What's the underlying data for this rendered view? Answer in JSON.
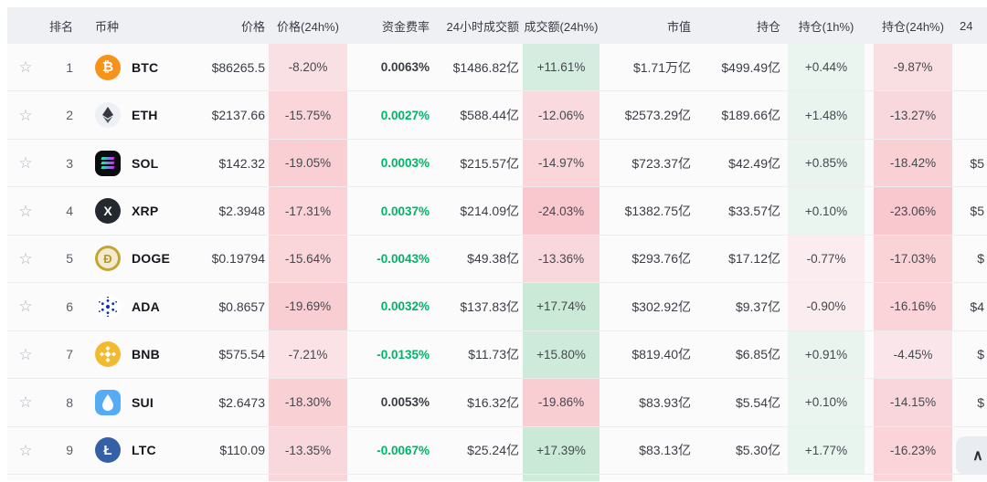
{
  "columns": [
    "排名",
    "币种",
    "价格",
    "价格(24h%)",
    "资金费率",
    "24小时成交额",
    "成交额(24h%)",
    "市值",
    "持仓",
    "持仓(1h%)",
    "持仓(24h%)",
    "24"
  ],
  "ui": {
    "star_glyph": "☆",
    "scroll_top_glyph": "∧"
  },
  "colors": {
    "green_text": "#00b468",
    "dark_text": "#3a3d44",
    "positive_rgb": [
      34,
      170,
      90
    ],
    "negative_rgb": [
      244,
      67,
      88
    ],
    "header_bg": "#eef0f4"
  },
  "rows": [
    {
      "rank": "1",
      "symbol": "BTC",
      "icon": {
        "type": "btc",
        "bg": "#f7931a"
      },
      "price": "$86265.5",
      "price_24h": {
        "text": "-8.20%",
        "value": -8.2
      },
      "funding": {
        "text": "0.0063%",
        "color": "dark"
      },
      "volume": "$1486.82亿",
      "vol_24h": {
        "text": "+11.61%",
        "value": 11.61
      },
      "mcap": "$1.71万亿",
      "oi": "$499.49亿",
      "oi_1h": {
        "text": "+0.44%",
        "value": 0.44
      },
      "oi_24h": {
        "text": "-9.87%",
        "value": -9.87
      },
      "last": ""
    },
    {
      "rank": "2",
      "symbol": "ETH",
      "icon": {
        "type": "eth",
        "bg": "#edf0f4"
      },
      "price": "$2137.66",
      "price_24h": {
        "text": "-15.75%",
        "value": -15.75
      },
      "funding": {
        "text": "0.0027%",
        "color": "green"
      },
      "volume": "$588.44亿",
      "vol_24h": {
        "text": "-12.06%",
        "value": -12.06
      },
      "mcap": "$2573.29亿",
      "oi": "$189.66亿",
      "oi_1h": {
        "text": "+1.48%",
        "value": 1.48
      },
      "oi_24h": {
        "text": "-13.27%",
        "value": -13.27
      },
      "last": ""
    },
    {
      "rank": "3",
      "symbol": "SOL",
      "icon": {
        "type": "sol",
        "bg": "#0c0c10"
      },
      "price": "$142.32",
      "price_24h": {
        "text": "-19.05%",
        "value": -19.05
      },
      "funding": {
        "text": "0.0003%",
        "color": "green"
      },
      "volume": "$215.57亿",
      "vol_24h": {
        "text": "-14.97%",
        "value": -14.97
      },
      "mcap": "$723.37亿",
      "oi": "$42.49亿",
      "oi_1h": {
        "text": "+0.85%",
        "value": 0.85
      },
      "oi_24h": {
        "text": "-18.42%",
        "value": -18.42
      },
      "last": "$5"
    },
    {
      "rank": "4",
      "symbol": "XRP",
      "icon": {
        "type": "xrp",
        "bg": "#23292f"
      },
      "price": "$2.3948",
      "price_24h": {
        "text": "-17.31%",
        "value": -17.31
      },
      "funding": {
        "text": "0.0037%",
        "color": "green"
      },
      "volume": "$214.09亿",
      "vol_24h": {
        "text": "-24.03%",
        "value": -24.03
      },
      "mcap": "$1382.75亿",
      "oi": "$33.57亿",
      "oi_1h": {
        "text": "+0.10%",
        "value": 0.1
      },
      "oi_24h": {
        "text": "-23.06%",
        "value": -23.06
      },
      "last": "$5"
    },
    {
      "rank": "5",
      "symbol": "DOGE",
      "icon": {
        "type": "doge",
        "bg": "#c2a633"
      },
      "price": "$0.19794",
      "price_24h": {
        "text": "-15.64%",
        "value": -15.64
      },
      "funding": {
        "text": "-0.0043%",
        "color": "green"
      },
      "volume": "$49.38亿",
      "vol_24h": {
        "text": "-13.36%",
        "value": -13.36
      },
      "mcap": "$293.76亿",
      "oi": "$17.12亿",
      "oi_1h": {
        "text": "-0.77%",
        "value": -0.77
      },
      "oi_24h": {
        "text": "-17.03%",
        "value": -17.03
      },
      "last": "$"
    },
    {
      "rank": "6",
      "symbol": "ADA",
      "icon": {
        "type": "ada",
        "bg": "#ffffff"
      },
      "price": "$0.8657",
      "price_24h": {
        "text": "-19.69%",
        "value": -19.69
      },
      "funding": {
        "text": "0.0032%",
        "color": "green"
      },
      "volume": "$137.83亿",
      "vol_24h": {
        "text": "+17.74%",
        "value": 17.74
      },
      "mcap": "$302.92亿",
      "oi": "$9.37亿",
      "oi_1h": {
        "text": "-0.90%",
        "value": -0.9
      },
      "oi_24h": {
        "text": "-16.16%",
        "value": -16.16
      },
      "last": "$4"
    },
    {
      "rank": "7",
      "symbol": "BNB",
      "icon": {
        "type": "bnb",
        "bg": "#f3ba2f"
      },
      "price": "$575.54",
      "price_24h": {
        "text": "-7.21%",
        "value": -7.21
      },
      "funding": {
        "text": "-0.0135%",
        "color": "green"
      },
      "volume": "$11.73亿",
      "vol_24h": {
        "text": "+15.80%",
        "value": 15.8
      },
      "mcap": "$819.40亿",
      "oi": "$6.85亿",
      "oi_1h": {
        "text": "+0.91%",
        "value": 0.91
      },
      "oi_24h": {
        "text": "-4.45%",
        "value": -4.45
      },
      "last": "$"
    },
    {
      "rank": "8",
      "symbol": "SUI",
      "icon": {
        "type": "sui",
        "bg": "#57abf5"
      },
      "price": "$2.6473",
      "price_24h": {
        "text": "-18.30%",
        "value": -18.3
      },
      "funding": {
        "text": "0.0053%",
        "color": "dark"
      },
      "volume": "$16.32亿",
      "vol_24h": {
        "text": "-19.86%",
        "value": -19.86
      },
      "mcap": "$83.93亿",
      "oi": "$5.54亿",
      "oi_1h": {
        "text": "+0.10%",
        "value": 0.1
      },
      "oi_24h": {
        "text": "-14.15%",
        "value": -14.15
      },
      "last": "$"
    },
    {
      "rank": "9",
      "symbol": "LTC",
      "icon": {
        "type": "ltc",
        "bg": "#3460a6"
      },
      "price": "$110.09",
      "price_24h": {
        "text": "-13.35%",
        "value": -13.35
      },
      "funding": {
        "text": "-0.0067%",
        "color": "green"
      },
      "volume": "$25.24亿",
      "vol_24h": {
        "text": "+17.39%",
        "value": 17.39
      },
      "mcap": "$83.13亿",
      "oi": "$5.30亿",
      "oi_1h": {
        "text": "+1.77%",
        "value": 1.77
      },
      "oi_24h": {
        "text": "-16.23%",
        "value": -16.23
      },
      "last": ""
    }
  ],
  "partial_row": {
    "price_24h": "negative",
    "vol_24h": "positive",
    "oi_24h": "negative"
  }
}
